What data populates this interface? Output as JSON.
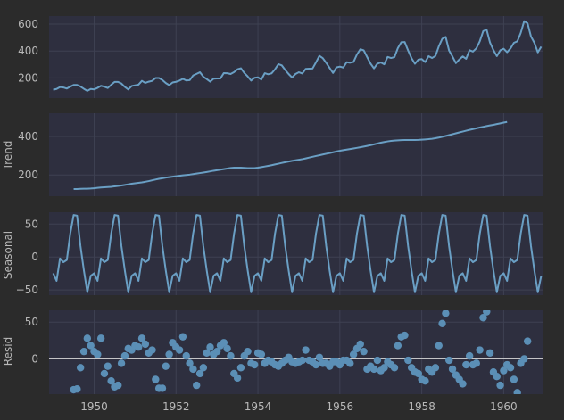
{
  "colors": {
    "figure_bg": "#2b2b2b",
    "axes_bg": "#2e2f3f",
    "grid": "#3e4152",
    "line": "#6a9fc4",
    "marker": "#5b8fb6",
    "zero_line": "#d8d8d8",
    "text": "#b8b8b8"
  },
  "chart_data": [
    {
      "type": "line",
      "panel": "observed",
      "ylabel": "",
      "xlim": [
        1948.9,
        1960.95
      ],
      "ylim": [
        50,
        660
      ],
      "yticks": [
        200,
        400,
        600
      ],
      "ytick_labels": [
        "200",
        "400",
        "600"
      ],
      "x_start": 1949.0,
      "x_step": 0.0833333,
      "values": [
        112,
        118,
        132,
        129,
        121,
        135,
        148,
        148,
        136,
        119,
        104,
        118,
        115,
        126,
        141,
        135,
        125,
        149,
        170,
        170,
        158,
        133,
        114,
        140,
        145,
        150,
        178,
        163,
        172,
        178,
        199,
        199,
        184,
        162,
        146,
        166,
        171,
        180,
        193,
        181,
        183,
        218,
        230,
        242,
        209,
        191,
        172,
        194,
        196,
        196,
        236,
        235,
        229,
        243,
        264,
        272,
        237,
        211,
        180,
        201,
        204,
        188,
        235,
        227,
        234,
        264,
        302,
        293,
        259,
        229,
        203,
        229,
        242,
        233,
        267,
        269,
        270,
        315,
        364,
        347,
        312,
        274,
        237,
        278,
        284,
        277,
        317,
        313,
        318,
        374,
        413,
        405,
        355,
        306,
        271,
        306,
        315,
        301,
        356,
        348,
        355,
        422,
        465,
        467,
        404,
        347,
        305,
        336,
        340,
        318,
        362,
        348,
        363,
        435,
        491,
        505,
        404,
        359,
        310,
        337,
        360,
        342,
        406,
        396,
        420,
        472,
        548,
        559,
        463,
        407,
        362,
        405,
        417,
        391,
        419,
        461,
        472,
        535,
        622,
        606,
        508,
        461,
        390,
        432
      ]
    },
    {
      "type": "line",
      "panel": "trend",
      "ylabel": "Trend",
      "xlim": [
        1948.9,
        1960.95
      ],
      "ylim": [
        90,
        520
      ],
      "yticks": [
        200,
        400
      ],
      "ytick_labels": [
        "200",
        "400"
      ],
      "x_start": 1949.5,
      "x_step": 0.0833333,
      "values": [
        126.79,
        127.25,
        127.96,
        128.58,
        129.0,
        129.75,
        131.25,
        133.08,
        134.92,
        136.42,
        137.42,
        138.75,
        140.92,
        143.17,
        145.71,
        148.42,
        151.54,
        154.71,
        157.12,
        159.54,
        161.83,
        164.75,
        168.29,
        172.46,
        176.46,
        180.08,
        183.12,
        186.21,
        189.04,
        191.29,
        193.58,
        195.83,
        198.04,
        199.75,
        201.79,
        204.46,
        207.29,
        209.96,
        212.62,
        215.42,
        218.62,
        222.0,
        224.83,
        227.54,
        230.46,
        233.46,
        236.21,
        237.83,
        238.17,
        237.83,
        236.71,
        235.67,
        235.42,
        235.79,
        237.79,
        240.79,
        243.96,
        247.21,
        250.62,
        254.54,
        258.58,
        262.58,
        266.42,
        269.92,
        273.08,
        275.96,
        278.96,
        282.21,
        286.08,
        290.21,
        294.29,
        298.25,
        302.17,
        306.08,
        309.96,
        313.71,
        317.71,
        321.75,
        325.5,
        328.88,
        331.79,
        334.67,
        337.54,
        340.54,
        343.71,
        347.08,
        350.71,
        354.54,
        358.83,
        363.12,
        367.33,
        371.08,
        374.08,
        376.42,
        378.21,
        379.58,
        380.54,
        381.17,
        381.33,
        381.25,
        381.5,
        382.04,
        383.0,
        384.21,
        385.75,
        387.71,
        390.54,
        393.92,
        397.79,
        402.21,
        406.67,
        411.25,
        415.92,
        420.58,
        425.04,
        429.46,
        433.75,
        437.92,
        442.0,
        445.96,
        449.75,
        453.5,
        456.79,
        460.08,
        463.79,
        467.42,
        471.42,
        475.04
      ]
    },
    {
      "type": "line",
      "panel": "seasonal",
      "ylabel": "Seasonal",
      "xlim": [
        1948.9,
        1960.95
      ],
      "ylim": [
        -58,
        68
      ],
      "yticks": [
        -50,
        0,
        50
      ],
      "ytick_labels": [
        "−50",
        "0",
        "50"
      ],
      "x_start": 1949.0,
      "x_step": 0.0833333,
      "period_values": [
        -24.7,
        -36.2,
        -2.2,
        -8.0,
        -4.5,
        35.4,
        63.8,
        62.8,
        16.5,
        -20.6,
        -53.6,
        -28.6
      ],
      "periods": 12
    },
    {
      "type": "scatter",
      "panel": "resid",
      "ylabel": "Resid",
      "xlim": [
        1948.9,
        1960.95
      ],
      "ylim": [
        -48,
        66
      ],
      "yticks": [
        0,
        50
      ],
      "ytick_labels": [
        "0",
        "50"
      ],
      "xticks": [
        1950,
        1952,
        1954,
        1956,
        1958,
        1960
      ],
      "xtick_labels": [
        "1950",
        "1952",
        "1954",
        "1956",
        "1958",
        "1960"
      ],
      "zero_line": true,
      "x_start": 1949.5,
      "x_step": 0.0833333,
      "values": [
        -42,
        -41,
        -12,
        10,
        28,
        18,
        10,
        6,
        28,
        -20,
        -10,
        -30,
        -38,
        -36,
        -6,
        4,
        14,
        12,
        18,
        16,
        28,
        20,
        8,
        12,
        -28,
        -40,
        -40,
        -10,
        6,
        22,
        16,
        12,
        30,
        4,
        -6,
        -14,
        -36,
        -20,
        -12,
        8,
        16,
        6,
        10,
        18,
        22,
        14,
        4,
        -20,
        -26,
        -12,
        4,
        10,
        -6,
        -8,
        8,
        6,
        -6,
        -2,
        -4,
        -8,
        -10,
        -6,
        -2,
        2,
        -4,
        -6,
        -4,
        -2,
        12,
        -2,
        -4,
        -8,
        2,
        -6,
        -6,
        -10,
        -4,
        -4,
        -8,
        -2,
        -2,
        -6,
        6,
        14,
        20,
        10,
        -14,
        -10,
        -14,
        -2,
        -16,
        -12,
        -4,
        -8,
        -12,
        18,
        30,
        32,
        -2,
        -12,
        -18,
        -20,
        -28,
        -30,
        -14,
        -18,
        -12,
        18,
        48,
        62,
        -2,
        -14,
        -22,
        -28,
        -34,
        -8,
        4,
        -8,
        -6,
        12,
        56,
        64,
        8,
        -18,
        -24,
        -36,
        -16,
        -8,
        -12,
        -28,
        -46,
        -6,
        0,
        24
      ]
    }
  ]
}
